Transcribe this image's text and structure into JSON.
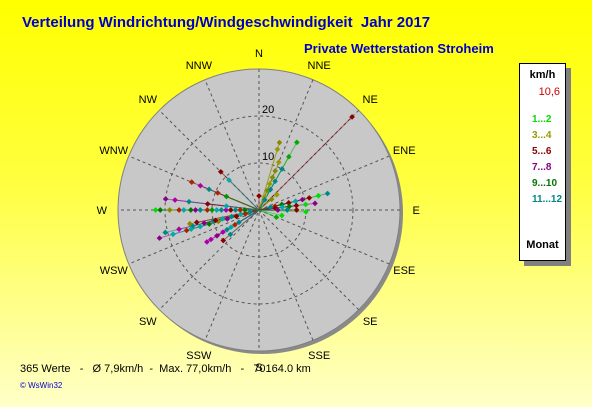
{
  "header": {
    "title": "Verteilung Windrichtung/Windgeschwindigkeit  Jahr 2017",
    "subtitle": "Private Wetterstation Stroheim"
  },
  "legend": {
    "unit": "km/h",
    "calm": "10,6",
    "items": [
      {
        "label": "1...2",
        "color": "#00dd00"
      },
      {
        "label": "3...4",
        "color": "#999900"
      },
      {
        "label": "5...6",
        "color": "#880000"
      },
      {
        "label": "7...8",
        "color": "#880088"
      },
      {
        "label": "9...10",
        "color": "#007700"
      },
      {
        "label": "11...12",
        "color": "#008888"
      }
    ],
    "footer_label": "Monat"
  },
  "footer": {
    "stats": "365 Werte   -   Ø 7,9km/h  -  Max. 77,0km/h   -   70164.0 km"
  },
  "logo": {
    "text": "© WsWin32"
  },
  "chart_data": {
    "type": "scatter",
    "polar": true,
    "directions": [
      "N",
      "NNE",
      "NE",
      "ENE",
      "E",
      "ESE",
      "SE",
      "SSE",
      "S",
      "SSW",
      "SW",
      "WSW",
      "W",
      "WNW",
      "NW",
      "NNW"
    ],
    "radial_ticks": [
      10,
      20
    ],
    "radial_max": 30,
    "month_colors": [
      "#00dd00",
      "#00aa00",
      "#999900",
      "#888800",
      "#880000",
      "#aa2200",
      "#880088",
      "#aa00aa",
      "#007700",
      "#009900",
      "#008888",
      "#00aaaa"
    ],
    "points": [
      {
        "dir": 11.3,
        "r": 22,
        "m": 6
      },
      {
        "dir": 11.4,
        "r": 20.5,
        "m": 10
      },
      {
        "dir": 11.3,
        "r": 19,
        "m": 11
      },
      {
        "dir": 11.4,
        "r": 17.5,
        "m": 7
      },
      {
        "dir": 11.3,
        "r": 16,
        "m": 5
      },
      {
        "dir": 11.4,
        "r": 14.5,
        "m": 10
      },
      {
        "dir": 11.3,
        "r": 13,
        "m": 11
      },
      {
        "dir": 11.4,
        "r": 12,
        "m": 6
      },
      {
        "dir": 11.3,
        "r": 11,
        "m": 8
      },
      {
        "dir": 11.4,
        "r": 10,
        "m": 10
      },
      {
        "dir": 11.3,
        "r": 9,
        "m": 3
      },
      {
        "dir": 11.4,
        "r": 8,
        "m": 11
      },
      {
        "dir": 11.3,
        "r": 7,
        "m": 6
      },
      {
        "dir": 11.4,
        "r": 6,
        "m": 10
      },
      {
        "dir": 11.3,
        "r": 5,
        "m": 4
      },
      {
        "dir": 11.4,
        "r": 4,
        "m": 11
      },
      {
        "dir": 11.3,
        "r": 3,
        "m": 5
      },
      {
        "dir": 11.4,
        "r": 2,
        "m": 10
      },
      {
        "dir": 11.3,
        "r": 15,
        "m": 11
      },
      {
        "dir": 11.4,
        "r": 9.5,
        "m": 4
      },
      {
        "dir": 11.5,
        "r": 15,
        "m": 3
      },
      {
        "dir": 11.5,
        "r": 13.5,
        "m": 4
      },
      {
        "dir": 10.6,
        "r": 13,
        "m": 7
      },
      {
        "dir": 10.6,
        "r": 12,
        "m": 7
      },
      {
        "dir": 10.6,
        "r": 10.5,
        "m": 6
      },
      {
        "dir": 10.6,
        "r": 9,
        "m": 7
      },
      {
        "dir": 10.6,
        "r": 8,
        "m": 10
      },
      {
        "dir": 10.6,
        "r": 7,
        "m": 11
      },
      {
        "dir": 10.6,
        "r": 6,
        "m": 5
      },
      {
        "dir": 10.6,
        "r": 5,
        "m": 10
      },
      {
        "dir": 10.2,
        "r": 10,
        "m": 4
      },
      {
        "dir": 10.2,
        "r": 8,
        "m": 10
      },
      {
        "dir": 12.0,
        "r": 22,
        "m": 0
      },
      {
        "dir": 12.0,
        "r": 21,
        "m": 8
      },
      {
        "dir": 12.0,
        "r": 19,
        "m": 3
      },
      {
        "dir": 12.0,
        "r": 17,
        "m": 5
      },
      {
        "dir": 12.0,
        "r": 16,
        "m": 11
      },
      {
        "dir": 12.0,
        "r": 14.5,
        "m": 8
      },
      {
        "dir": 12.0,
        "r": 13.5,
        "m": 6
      },
      {
        "dir": 12.0,
        "r": 12.5,
        "m": 10
      },
      {
        "dir": 12.0,
        "r": 11,
        "m": 5
      },
      {
        "dir": 12.0,
        "r": 10,
        "m": 9
      },
      {
        "dir": 12.0,
        "r": 9,
        "m": 11
      },
      {
        "dir": 12.0,
        "r": 8,
        "m": 10
      },
      {
        "dir": 12.0,
        "r": 7,
        "m": 7
      },
      {
        "dir": 12.0,
        "r": 6,
        "m": 4
      },
      {
        "dir": 12.0,
        "r": 5,
        "m": 10
      },
      {
        "dir": 12.0,
        "r": 4,
        "m": 5
      },
      {
        "dir": 12.0,
        "r": 3,
        "m": 8
      },
      {
        "dir": 12.3,
        "r": 20,
        "m": 6
      },
      {
        "dir": 12.3,
        "r": 18,
        "m": 7
      },
      {
        "dir": 12.3,
        "r": 15,
        "m": 10
      },
      {
        "dir": 12.3,
        "r": 11,
        "m": 4
      },
      {
        "dir": 12.3,
        "r": 7,
        "m": 11
      },
      {
        "dir": 13.0,
        "r": 15.5,
        "m": 5
      },
      {
        "dir": 13.0,
        "r": 13.5,
        "m": 7
      },
      {
        "dir": 13.0,
        "r": 11.5,
        "m": 10
      },
      {
        "dir": 13.0,
        "r": 9.5,
        "m": 5
      },
      {
        "dir": 13.0,
        "r": 7.5,
        "m": 9
      },
      {
        "dir": 14.0,
        "r": 11.5,
        "m": 4
      },
      {
        "dir": 14.0,
        "r": 9,
        "m": 11
      },
      {
        "dir": 1.0,
        "r": 11,
        "m": 2
      },
      {
        "dir": 1.0,
        "r": 9,
        "m": 3
      },
      {
        "dir": 1.0,
        "r": 7.5,
        "m": 3
      },
      {
        "dir": 1.0,
        "r": 6,
        "m": 2
      },
      {
        "dir": 1.0,
        "r": 4.5,
        "m": 3
      },
      {
        "dir": 1.0,
        "r": 3,
        "m": 2
      },
      {
        "dir": 0.75,
        "r": 15,
        "m": 3
      },
      {
        "dir": 0.75,
        "r": 13.5,
        "m": 2
      },
      {
        "dir": 1.3,
        "r": 16.5,
        "m": 1
      },
      {
        "dir": 1.3,
        "r": 13,
        "m": 1
      },
      {
        "dir": 1.3,
        "r": 10,
        "m": 10
      },
      {
        "dir": 1.3,
        "r": 7,
        "m": 10
      },
      {
        "dir": 1.3,
        "r": 5,
        "m": 10
      },
      {
        "dir": 1.3,
        "r": 2.5,
        "m": 10
      },
      {
        "dir": 2.0,
        "r": 28,
        "m": 4
      },
      {
        "dir": 2.2,
        "r": 5,
        "m": 2
      },
      {
        "dir": 2.2,
        "r": 3.5,
        "m": 3
      },
      {
        "dir": 3.4,
        "r": 15,
        "m": 10
      },
      {
        "dir": 3.4,
        "r": 13,
        "m": 0
      },
      {
        "dir": 3.4,
        "r": 11,
        "m": 4
      },
      {
        "dir": 3.4,
        "r": 9.5,
        "m": 6
      },
      {
        "dir": 3.4,
        "r": 8,
        "m": 11
      },
      {
        "dir": 3.4,
        "r": 6.5,
        "m": 4
      },
      {
        "dir": 3.4,
        "r": 5,
        "m": 8
      },
      {
        "dir": 3.4,
        "r": 3.5,
        "m": 5
      },
      {
        "dir": 3.4,
        "r": 2.5,
        "m": 10
      },
      {
        "dir": 3.7,
        "r": 12,
        "m": 6
      },
      {
        "dir": 3.7,
        "r": 10,
        "m": 0
      },
      {
        "dir": 3.7,
        "r": 8,
        "m": 4
      },
      {
        "dir": 3.7,
        "r": 6.5,
        "m": 8
      },
      {
        "dir": 3.7,
        "r": 5,
        "m": 11
      },
      {
        "dir": 3.7,
        "r": 3.5,
        "m": 4
      },
      {
        "dir": 4.1,
        "r": 10,
        "m": 0
      },
      {
        "dir": 4.0,
        "r": 8,
        "m": 4
      },
      {
        "dir": 4.0,
        "r": 6,
        "m": 10
      },
      {
        "dir": 4.0,
        "r": 4,
        "m": 6
      },
      {
        "dir": 4.6,
        "r": 5,
        "m": 0
      },
      {
        "dir": 5.0,
        "r": 4,
        "m": 1
      },
      {
        "dir": 0.0,
        "r": 3,
        "m": 4
      }
    ]
  }
}
